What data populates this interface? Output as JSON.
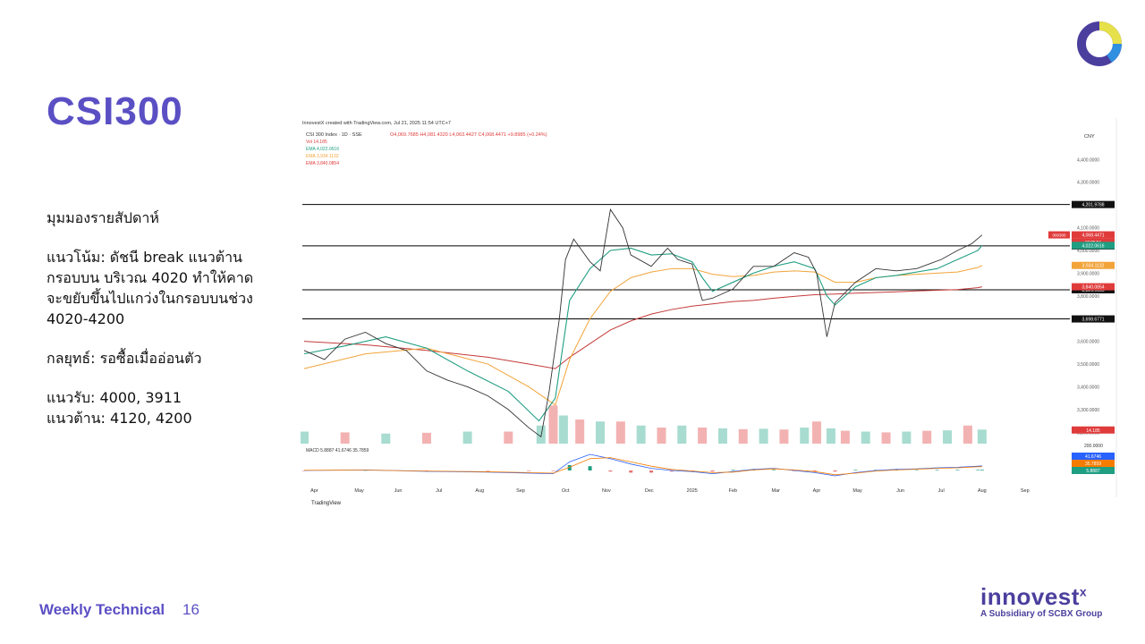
{
  "slide": {
    "title": "CSI300",
    "commentary": {
      "heading": "มุมมองรายสัปดาห์",
      "trend_lines": [
        "แนวโน้ม: ดัชนี break แนวต้าน",
        "กรอบบน บริเวณ 4020 ทำให้คาด",
        "จะขยับขึ้นไปแกว่งในกรอบบนช่วง",
        "4020-4200"
      ],
      "strategy": "กลยุทธ์: รอซื้อเมื่ออ่อนตัว",
      "support": "แนวรับ: 4000, 3911",
      "resistance": "แนวต้าน: 4120, 4200"
    },
    "footer_title": "Weekly Technical",
    "page_number": "16",
    "brand": {
      "wordmark": "innovest",
      "wordmark_x": "x",
      "tagline": "A Subsidiary of SCBX Group"
    },
    "colors": {
      "accent": "#5b4fc4",
      "brand_dark": "#4b3f9e",
      "logo_yellow": "#e6e04a",
      "logo_blue": "#2f8fe0"
    }
  },
  "chart_data": {
    "type": "line",
    "header": "InnovestX created with TradingView.com, Jul 21, 2025 11:54 UTC+7",
    "symbol": "CSI 300 Index · 1D · SSE",
    "ohlc": "O4,069.7685 H4,081.4320 L4,063.4427 C4,068.4471 +9.8985 (+0.24%)",
    "indicators": [
      "Vol 14.185",
      "EMA 4,022.0616",
      "EMA 3,934.1132",
      "EMA 3,840.0854"
    ],
    "currency": "CNY",
    "ylim": [
      3150,
      4480
    ],
    "y_ticks": [
      3200,
      3300,
      3400,
      3500,
      3600,
      3700,
      3800,
      3900,
      4000,
      4100,
      4200,
      4300,
      4400
    ],
    "y_tick_labels": [
      "3,200.0000",
      "3,300.0000",
      "3,400.0000",
      "3,500.0000",
      "3,600.0000",
      "3,700.0000",
      "3,800.0000",
      "3,900.0000",
      "4,000.0000",
      "4,100.0000",
      "4,200.0000",
      "4,300.0000",
      "4,400.0000"
    ],
    "x_labels": [
      "Apr",
      "May",
      "Jun",
      "Jul",
      "Aug",
      "Sep",
      "Oct",
      "Nov",
      "Dec",
      "2025",
      "Feb",
      "Mar",
      "Apr",
      "May",
      "Jun",
      "Jul",
      "Aug",
      "Sep"
    ],
    "x_label_pos": [
      0.5,
      2.7,
      4.6,
      6.6,
      8.6,
      10.6,
      12.8,
      14.8,
      16.9,
      19.0,
      21.0,
      23.1,
      25.1,
      27.1,
      29.2,
      31.2,
      33.2,
      35.3
    ],
    "x_range": [
      0,
      37.5
    ],
    "horizontal_levels": [
      {
        "value": 4201.9788,
        "label": "4,201.9788"
      },
      {
        "value": 4020.0,
        "label": "4,020.0000"
      },
      {
        "value": 3826.9185,
        "label": "3,826.9185"
      },
      {
        "value": 3698.6771,
        "label": "3,698.6771"
      }
    ],
    "value_badges": [
      {
        "value": 4068.4471,
        "label": "4,068.4471",
        "sub": "02:05:54",
        "tag": "000300",
        "color": "#e03b3b"
      },
      {
        "value": 4022.0616,
        "label": "4,022.0616",
        "color": "#1f9e82"
      },
      {
        "value": 3934.1132,
        "label": "3,934.1132",
        "color": "#f2a43a"
      },
      {
        "value": 3840.0854,
        "label": "3,840.0854",
        "color": "#e03b3b"
      },
      {
        "value": 3210,
        "label": "14.185",
        "color": "#e03b3b"
      }
    ],
    "price_series": {
      "name": "CSI 300",
      "x": [
        0,
        1,
        2,
        3,
        4,
        5,
        6,
        7,
        8,
        9,
        10,
        11,
        11.6,
        12,
        12.5,
        12.8,
        13.2,
        14,
        14.5,
        15,
        15.6,
        16,
        17,
        17.8,
        18.3,
        19,
        19.5,
        20,
        21,
        22,
        23,
        24,
        24.7,
        25.1,
        25.6,
        26,
        27,
        28,
        29,
        30,
        30.6,
        31.2,
        32,
        32.7,
        33.2
      ],
      "close": [
        3560,
        3520,
        3610,
        3640,
        3590,
        3560,
        3470,
        3430,
        3400,
        3360,
        3300,
        3220,
        3180,
        3380,
        3700,
        3960,
        4050,
        3950,
        3910,
        4180,
        4100,
        3980,
        3930,
        4010,
        3960,
        3940,
        3780,
        3790,
        3830,
        3930,
        3930,
        3990,
        3970,
        3900,
        3620,
        3770,
        3860,
        3920,
        3910,
        3920,
        3940,
        3960,
        4000,
        4030,
        4068
      ]
    },
    "ema_short": {
      "x": [
        0,
        2,
        4,
        6,
        8,
        10,
        11.5,
        12.3,
        13,
        14,
        15,
        16,
        17,
        18,
        19,
        19.5,
        20,
        21,
        22,
        23,
        24,
        25,
        25.6,
        26,
        27,
        28,
        29,
        30,
        31,
        32,
        33,
        33.2
      ],
      "y": [
        3545,
        3580,
        3620,
        3570,
        3470,
        3380,
        3250,
        3350,
        3780,
        3920,
        4000,
        4010,
        3980,
        3985,
        3950,
        3880,
        3820,
        3860,
        3900,
        3930,
        3950,
        3920,
        3800,
        3760,
        3840,
        3880,
        3890,
        3905,
        3920,
        3960,
        4000,
        4022
      ]
    },
    "ema_mid": {
      "x": [
        0,
        3,
        6,
        9,
        11,
        12.3,
        13,
        14,
        15,
        16,
        17,
        18,
        19,
        20,
        21,
        22,
        23,
        24,
        25,
        26,
        27,
        28,
        29,
        30,
        31,
        32,
        33,
        33.2
      ],
      "y": [
        3480,
        3545,
        3570,
        3500,
        3400,
        3320,
        3520,
        3700,
        3820,
        3880,
        3905,
        3920,
        3920,
        3895,
        3885,
        3890,
        3905,
        3910,
        3905,
        3860,
        3860,
        3880,
        3890,
        3895,
        3900,
        3905,
        3925,
        3934
      ]
    },
    "ema_long": {
      "x": [
        0,
        3,
        6,
        9,
        11,
        12.3,
        13,
        14,
        15,
        16,
        17,
        18,
        19,
        20,
        21,
        22,
        23,
        24,
        25,
        26,
        27,
        28,
        29,
        30,
        31,
        32,
        33,
        33.2
      ],
      "y": [
        3600,
        3585,
        3560,
        3530,
        3500,
        3480,
        3530,
        3590,
        3650,
        3690,
        3720,
        3740,
        3755,
        3765,
        3775,
        3780,
        3790,
        3798,
        3805,
        3808,
        3812,
        3815,
        3818,
        3822,
        3825,
        3828,
        3836,
        3840
      ]
    },
    "volume": {
      "x": [
        0,
        2,
        4,
        6,
        8,
        10,
        11.6,
        12.2,
        12.7,
        13.5,
        14.5,
        15.5,
        16.5,
        17.5,
        18.5,
        19.5,
        20.5,
        21.5,
        22.5,
        23.5,
        24.5,
        25.1,
        25.8,
        26.5,
        27.5,
        28.5,
        29.5,
        30.5,
        31.5,
        32.5,
        33.2
      ],
      "value": [
        0.3,
        0.28,
        0.25,
        0.27,
        0.3,
        0.3,
        0.45,
        0.95,
        0.7,
        0.6,
        0.55,
        0.55,
        0.45,
        0.4,
        0.45,
        0.4,
        0.38,
        0.36,
        0.37,
        0.35,
        0.4,
        0.55,
        0.38,
        0.32,
        0.3,
        0.28,
        0.3,
        0.32,
        0.33,
        0.45,
        0.35
      ]
    },
    "macd": {
      "label": "MACD 5.8887 41.6746 35.7859",
      "scale_label": "200.0000",
      "badges": [
        {
          "label": "41.6746",
          "color": "#2962ff"
        },
        {
          "label": "35.7859",
          "color": "#f57c00"
        },
        {
          "label": "5.8887",
          "color": "#1f9e82"
        }
      ],
      "x": [
        0,
        3,
        6,
        9,
        11,
        12.2,
        13,
        14,
        15,
        16,
        17,
        18,
        19,
        20,
        21,
        22,
        23,
        24,
        25,
        26,
        27,
        28,
        29,
        30,
        31,
        32,
        33,
        33.2
      ],
      "macd_line": [
        0,
        5,
        -8,
        -15,
        -25,
        -30,
        80,
        150,
        110,
        60,
        20,
        0,
        -10,
        -30,
        -10,
        10,
        20,
        0,
        -20,
        -50,
        -20,
        0,
        10,
        15,
        25,
        30,
        40,
        42
      ],
      "signal_line": [
        2,
        3,
        -5,
        -12,
        -20,
        -25,
        30,
        110,
        120,
        80,
        40,
        10,
        -5,
        -20,
        -15,
        5,
        15,
        5,
        -10,
        -40,
        -25,
        -5,
        5,
        12,
        20,
        25,
        35,
        36
      ],
      "histogram": [
        -2,
        2,
        -3,
        -3,
        -5,
        -5,
        50,
        40,
        -10,
        -20,
        -20,
        -10,
        -5,
        -10,
        5,
        5,
        5,
        -5,
        -10,
        -10,
        5,
        5,
        5,
        3,
        5,
        5,
        5,
        6
      ]
    },
    "watermark": "TradingView",
    "grid": false
  }
}
